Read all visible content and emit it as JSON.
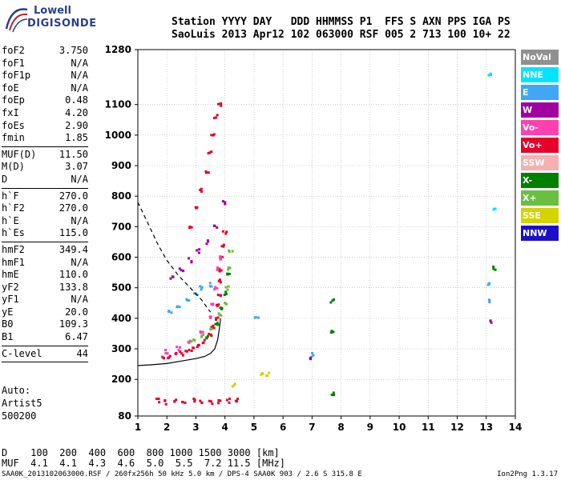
{
  "logo": {
    "line1": "Lowell",
    "line2": "DIGISONDE"
  },
  "header": {
    "line1": "Station YYYY DAY   DDD HHMMSS P1  FFS S AXN PPS IGA PS",
    "line2": "SaoLuis 2013 Apr12 102 063000 RSF 005 2 713 100 10+ 22"
  },
  "params": [
    {
      "group": [
        {
          "name": "foF2",
          "value": "3.750"
        },
        {
          "name": "foF1",
          "value": "N/A"
        },
        {
          "name": "foF1p",
          "value": "N/A"
        },
        {
          "name": "foE",
          "value": "N/A"
        },
        {
          "name": "foEp",
          "value": "0.48"
        },
        {
          "name": "fxI",
          "value": "4.20"
        },
        {
          "name": "foEs",
          "value": "2.90"
        },
        {
          "name": "fmin",
          "value": "1.85"
        }
      ]
    },
    {
      "group": [
        {
          "name": "MUF(D)",
          "value": "11.50"
        },
        {
          "name": "M(D)",
          "value": "3.07"
        },
        {
          "name": "D",
          "value": "N/A"
        }
      ]
    },
    {
      "group": [
        {
          "name": "h`F",
          "value": "270.0"
        },
        {
          "name": "h`F2",
          "value": "270.0"
        },
        {
          "name": "h`E",
          "value": "N/A"
        },
        {
          "name": "h`Es",
          "value": "115.0"
        }
      ]
    },
    {
      "group": [
        {
          "name": "hmF2",
          "value": "349.4"
        },
        {
          "name": "hmF1",
          "value": "N/A"
        },
        {
          "name": "hmE",
          "value": "110.0"
        },
        {
          "name": "yF2",
          "value": "133.8"
        },
        {
          "name": "yF1",
          "value": "N/A"
        },
        {
          "name": "yE",
          "value": "20.0"
        },
        {
          "name": "B0",
          "value": "109.3"
        },
        {
          "name": "B1",
          "value": "6.47"
        }
      ]
    },
    {
      "group": [
        {
          "name": "C-level",
          "value": "44"
        }
      ]
    }
  ],
  "auto": {
    "line1": "Auto:",
    "line2": "Artist5",
    "line3": "500200"
  },
  "legend": [
    {
      "label": "NoVal",
      "color": "#909090"
    },
    {
      "label": "NNE",
      "color": "#00e5ff"
    },
    {
      "label": "E",
      "color": "#3fa7f5"
    },
    {
      "label": "W",
      "color": "#a000a0"
    },
    {
      "label": "Vo-",
      "color": "#ff40b0"
    },
    {
      "label": "Vo+",
      "color": "#e8002a"
    },
    {
      "label": "SSW",
      "color": "#f5b0b0"
    },
    {
      "label": "X-",
      "color": "#008000"
    },
    {
      "label": "X+",
      "color": "#6abf40"
    },
    {
      "label": "SSE",
      "color": "#d4d400"
    },
    {
      "label": "NNW",
      "color": "#1a10c8"
    }
  ],
  "muf_table": {
    "line1": "D    100  200  400  600  800 1000 1500 3000 [km]",
    "line2": "MUF  4.1  4.1  4.3  4.6  5.0  5.5  7.2 11.5 [MHz]"
  },
  "footer": {
    "left": "SAA0K_2013102063000.RSF / 260fx256h 50 kHz 5.0 km / DPS-4 SAA0K 903 / 2.6 S 315.8 E",
    "right": "Ion2Png 1.3.17"
  },
  "chart_data": {
    "type": "scatter",
    "title": "",
    "xlabel": "",
    "ylabel": "",
    "xlim": [
      1,
      14
    ],
    "ylim": [
      80,
      1280
    ],
    "x_ticks": [
      1,
      2,
      3,
      4,
      5,
      6,
      7,
      8,
      9,
      10,
      11,
      12,
      13,
      14
    ],
    "y_ticks": [
      80,
      200,
      300,
      400,
      500,
      600,
      700,
      800,
      900,
      1000,
      1100,
      1280
    ],
    "grid": true,
    "legend_position": "right",
    "traces": [
      {
        "series": "Vo+",
        "color": "#e8002a",
        "points": [
          [
            1.9,
            270
          ],
          [
            2.1,
            275
          ],
          [
            2.3,
            280
          ],
          [
            2.5,
            285
          ],
          [
            2.7,
            292
          ],
          [
            2.9,
            300
          ],
          [
            3.1,
            310
          ],
          [
            3.3,
            325
          ],
          [
            3.5,
            345
          ],
          [
            3.6,
            370
          ],
          [
            3.7,
            400
          ],
          [
            3.75,
            440
          ],
          [
            3.8,
            480
          ],
          [
            3.82,
            520
          ],
          [
            3.85,
            560
          ],
          [
            3.9,
            600
          ],
          [
            3.95,
            640
          ],
          [
            4.0,
            680
          ]
        ]
      },
      {
        "series": "Vo-",
        "color": "#ff40b0",
        "points": [
          [
            2.0,
            290
          ],
          [
            2.4,
            300
          ],
          [
            2.8,
            320
          ],
          [
            3.2,
            350
          ],
          [
            3.5,
            400
          ],
          [
            3.6,
            450
          ],
          [
            3.7,
            500
          ],
          [
            3.8,
            560
          ],
          [
            3.85,
            600
          ]
        ]
      },
      {
        "series": "X+",
        "color": "#6abf40",
        "points": [
          [
            2.9,
            330
          ],
          [
            3.2,
            345
          ],
          [
            3.5,
            370
          ],
          [
            3.8,
            410
          ],
          [
            4.0,
            450
          ],
          [
            4.1,
            500
          ],
          [
            4.15,
            560
          ],
          [
            4.2,
            620
          ]
        ]
      },
      {
        "series": "X-",
        "color": "#008000",
        "points": [
          [
            3.4,
            340
          ],
          [
            3.7,
            380
          ],
          [
            3.9,
            430
          ],
          [
            4.05,
            480
          ],
          [
            4.1,
            540
          ],
          [
            7.7,
            455
          ],
          [
            7.7,
            355
          ],
          [
            7.7,
            155
          ],
          [
            13.3,
            565
          ]
        ]
      },
      {
        "series": "E",
        "color": "#3fa7f5",
        "points": [
          [
            2.1,
            420
          ],
          [
            2.4,
            440
          ],
          [
            2.7,
            460
          ],
          [
            3.0,
            480
          ],
          [
            3.2,
            500
          ],
          [
            3.5,
            510
          ],
          [
            5.1,
            400
          ],
          [
            7.0,
            280
          ],
          [
            13.1,
            510
          ],
          [
            13.1,
            455
          ]
        ]
      },
      {
        "series": "W",
        "color": "#a000a0",
        "points": [
          [
            2.2,
            530
          ],
          [
            2.5,
            560
          ],
          [
            2.8,
            590
          ],
          [
            3.1,
            620
          ],
          [
            3.4,
            650
          ],
          [
            3.7,
            700
          ],
          [
            4.0,
            780
          ],
          [
            7.0,
            265
          ],
          [
            13.2,
            390
          ]
        ]
      },
      {
        "series": "Vo+",
        "color": "#e8002a",
        "points": [
          [
            2.8,
            700
          ],
          [
            3.0,
            760
          ],
          [
            3.2,
            820
          ],
          [
            3.4,
            880
          ],
          [
            3.5,
            940
          ],
          [
            3.6,
            1000
          ],
          [
            3.7,
            1060
          ],
          [
            3.8,
            1100
          ]
        ]
      },
      {
        "series": "NNE",
        "color": "#00e5ff",
        "points": [
          [
            13.1,
            1200
          ],
          [
            13.3,
            760
          ]
        ]
      },
      {
        "series": "SSE",
        "color": "#d4d400",
        "points": [
          [
            5.3,
            215
          ],
          [
            5.5,
            218
          ],
          [
            4.3,
            180
          ]
        ]
      },
      {
        "series": "Es",
        "color": "#e8002a",
        "points": [
          [
            1.7,
            130
          ],
          [
            2.0,
            125
          ],
          [
            2.3,
            128
          ],
          [
            2.6,
            126
          ],
          [
            2.9,
            130
          ],
          [
            3.2,
            127
          ],
          [
            3.5,
            125
          ],
          [
            3.8,
            128
          ],
          [
            4.1,
            130
          ],
          [
            4.4,
            132
          ]
        ]
      }
    ],
    "profile_curve": {
      "color": "#000000",
      "style": "solid",
      "points": [
        [
          1.0,
          245
        ],
        [
          1.5,
          248
        ],
        [
          2.0,
          252
        ],
        [
          2.5,
          260
        ],
        [
          3.0,
          268
        ],
        [
          3.3,
          275
        ],
        [
          3.5,
          285
        ],
        [
          3.65,
          300
        ],
        [
          3.75,
          330
        ],
        [
          3.8,
          360
        ],
        [
          3.85,
          400
        ]
      ]
    },
    "muf_curve": {
      "color": "#000000",
      "style": "dashed",
      "points": [
        [
          1.0,
          780
        ],
        [
          1.3,
          720
        ],
        [
          1.7,
          640
        ],
        [
          2.0,
          590
        ],
        [
          2.4,
          540
        ],
        [
          2.8,
          500
        ],
        [
          3.2,
          460
        ],
        [
          3.5,
          420
        ]
      ]
    }
  }
}
